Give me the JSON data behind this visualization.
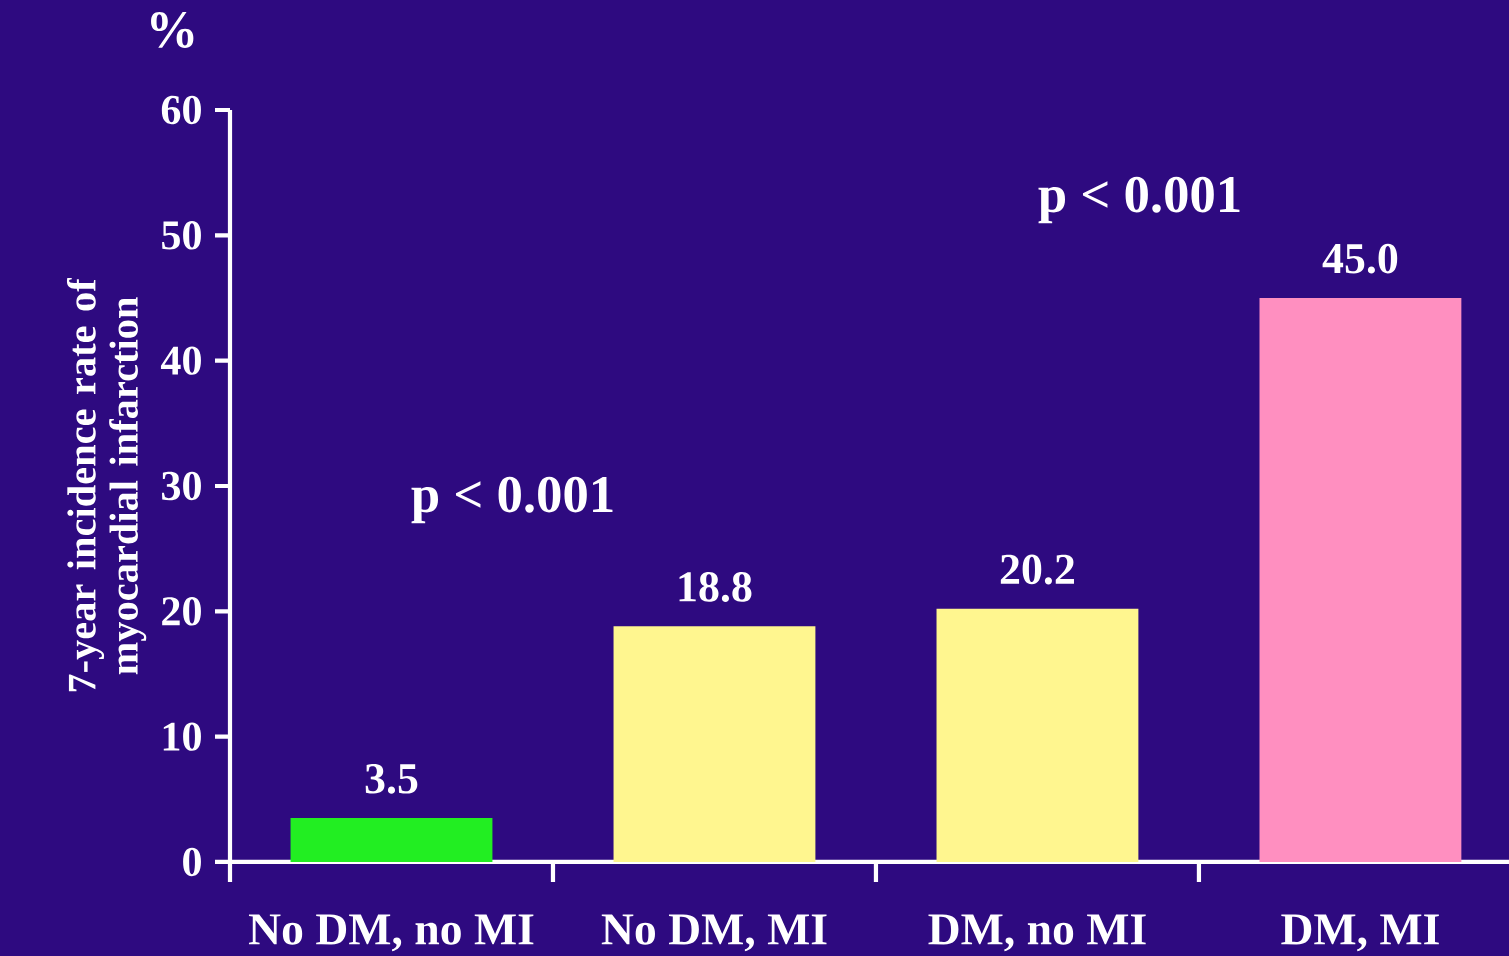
{
  "chart_data": {
    "type": "bar",
    "ylabel": "7-year incidence rate of myocardial infarction",
    "categories": [
      "No DM, no MI",
      "No DM, MI",
      "DM, no MI",
      "DM, MI"
    ],
    "values": [
      3.5,
      18.8,
      20.2,
      45.0
    ],
    "colors": [
      "#22ee22",
      "#fff68f",
      "#fff68f",
      "#ff8fc0"
    ],
    "value_labels": [
      "3.5",
      "18.8",
      "20.2",
      "45.0"
    ],
    "ylim": [
      0,
      60
    ],
    "yticks": [
      0,
      10,
      20,
      30,
      40,
      50,
      60
    ],
    "annotations": [
      "%",
      "p < 0.001",
      "p < 0.001"
    ],
    "grid": false
  }
}
